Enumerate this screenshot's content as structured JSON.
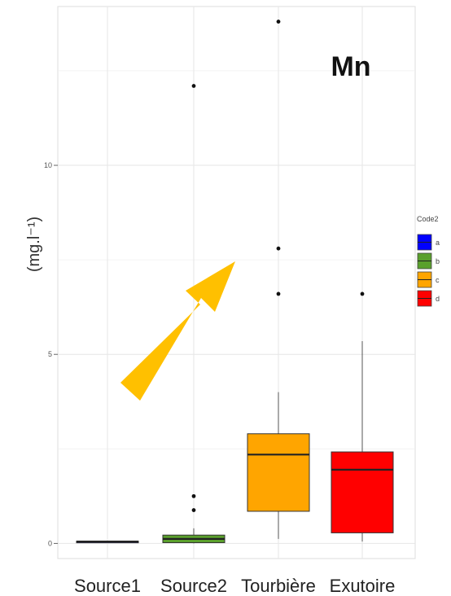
{
  "chart_data": {
    "type": "boxplot",
    "title": "Mn",
    "ylabel": "(mg.l⁻¹)",
    "xlabel": "",
    "ylim": [
      -0.4,
      14.2
    ],
    "yticks": [
      0,
      5,
      10
    ],
    "grid": true,
    "categories": [
      "Source1",
      "Source2",
      "Tourbière",
      "Exutoire"
    ],
    "boxes": [
      {
        "category": "Source1",
        "group": "a",
        "color": "#0000ff",
        "min": 0.03,
        "q1": 0.04,
        "median": 0.05,
        "q3": 0.06,
        "max": 0.07,
        "outliers": []
      },
      {
        "category": "Source2",
        "group": "b",
        "color": "#5aa02c",
        "min": 0.0,
        "q1": 0.02,
        "median": 0.12,
        "q3": 0.22,
        "max": 0.4,
        "outliers": [
          0.88,
          1.25,
          12.1
        ]
      },
      {
        "category": "Tourbière",
        "group": "c",
        "color": "#ffa500",
        "min": 0.12,
        "q1": 0.85,
        "median": 2.35,
        "q3": 2.9,
        "max": 4.0,
        "outliers": [
          6.6,
          7.8,
          13.8
        ]
      },
      {
        "category": "Exutoire",
        "group": "d",
        "color": "#ff0000",
        "min": 0.05,
        "q1": 0.28,
        "median": 1.95,
        "q3": 2.42,
        "max": 5.35,
        "outliers": [
          6.6
        ]
      }
    ],
    "legend": {
      "title": "Code2",
      "position": "right",
      "entries": [
        {
          "label": "a",
          "color": "#0000ff"
        },
        {
          "label": "b",
          "color": "#5aa02c"
        },
        {
          "label": "c",
          "color": "#ffa500"
        },
        {
          "label": "d",
          "color": "#ff0000"
        }
      ]
    },
    "annotation": {
      "type": "arrow",
      "direction": "up-right",
      "color": "#ffc000"
    }
  }
}
